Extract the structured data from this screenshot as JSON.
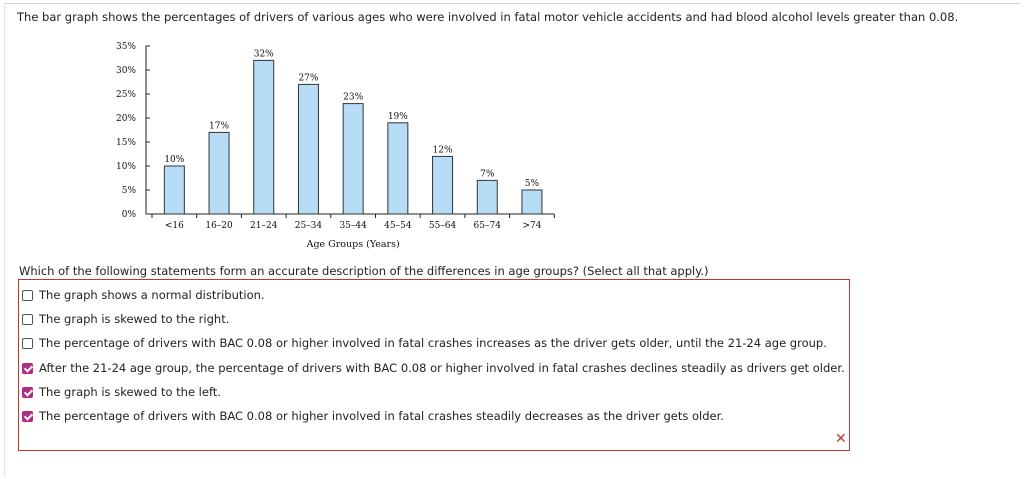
{
  "question": {
    "prompt": "The bar graph shows the percentages of drivers of various ages who were involved in fatal motor vehicle accidents and had blood alcohol levels greater than 0.08.",
    "instruction": "Which of the following statements form an accurate description of the differences in age groups? (Select all that apply.)"
  },
  "chart_data": {
    "type": "bar",
    "categories": [
      "<16",
      "16–20",
      "21–24",
      "25–34",
      "35–44",
      "45–54",
      "55–64",
      "65–74",
      ">74"
    ],
    "values": [
      10,
      17,
      32,
      27,
      23,
      19,
      12,
      7,
      5
    ],
    "data_labels": [
      "10%",
      "17%",
      "32%",
      "27%",
      "23%",
      "19%",
      "12%",
      "7%",
      "5%"
    ],
    "y_ticks": [
      "0%",
      "5%",
      "10%",
      "15%",
      "20%",
      "25%",
      "30%",
      "35%"
    ],
    "ylim": [
      0,
      35
    ],
    "title": "",
    "xlabel": "Age Groups (Years)",
    "ylabel": "",
    "bar_color": "#b7dcf5",
    "grid": false
  },
  "options": [
    {
      "text": "The graph shows a normal distribution.",
      "checked": false
    },
    {
      "text": "The graph is skewed to the right.",
      "checked": false
    },
    {
      "text": "The percentage of drivers with BAC 0.08 or higher involved in fatal crashes increases as the driver gets older, until the 21-24 age group.",
      "checked": false
    },
    {
      "text": "After the 21-24 age group, the percentage of drivers with BAC 0.08 or higher involved in fatal crashes declines steadily as drivers get older.",
      "checked": true
    },
    {
      "text": "The graph is skewed to the left.",
      "checked": true
    },
    {
      "text": "The percentage of drivers with BAC 0.08 or higher involved in fatal crashes steadily decreases as the driver gets older.",
      "checked": true
    }
  ],
  "result": {
    "icon": "incorrect-x-icon",
    "symbol": "✕",
    "color": "#c0362c"
  }
}
